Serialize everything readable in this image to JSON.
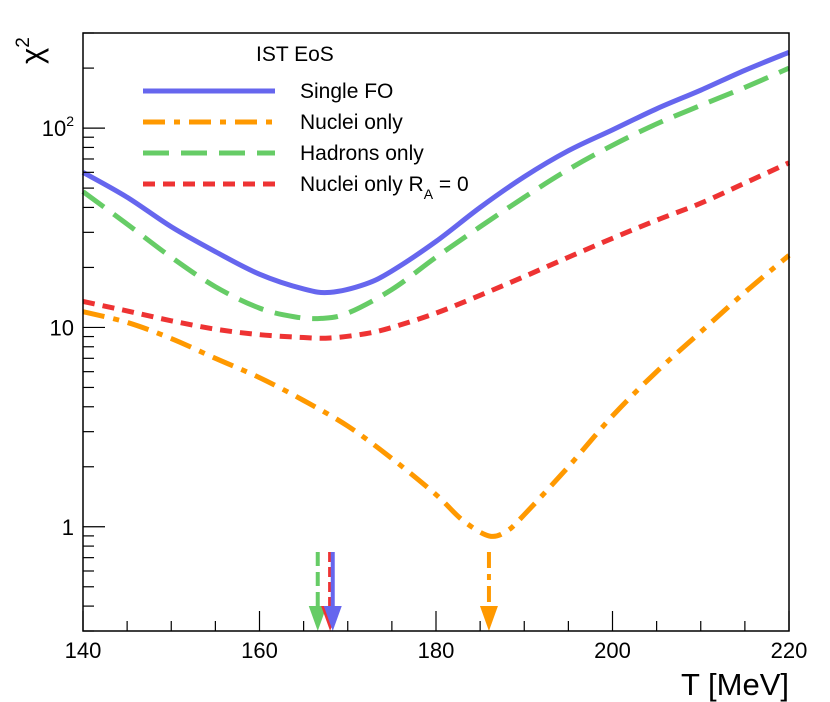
{
  "chart_data": {
    "type": "line",
    "title": "",
    "xlabel": "T [MeV]",
    "ylabel_base": "χ",
    "ylabel_sup": "2",
    "xlim": [
      140,
      220
    ],
    "ylim": [
      0.3,
      300
    ],
    "yscale": "log",
    "grid": false,
    "legend_position": "top-left",
    "legend_title": "IST EoS",
    "x_ticks": [
      {
        "value": 140,
        "label": "140"
      },
      {
        "value": 160,
        "label": "160"
      },
      {
        "value": 180,
        "label": "180"
      },
      {
        "value": 200,
        "label": "200"
      },
      {
        "value": 220,
        "label": "220"
      }
    ],
    "y_ticks": [
      {
        "value": 1,
        "label": "1"
      },
      {
        "value": 10,
        "label": "10"
      },
      {
        "value": 100,
        "label": "10",
        "sup": "2"
      }
    ],
    "series": [
      {
        "name": "Single FO",
        "legend_main": "Single FO",
        "legend_sub": "",
        "legend_tail": "",
        "color": "#6666ee",
        "style": "solid",
        "minimum_T": 168.2,
        "x": [
          140,
          145,
          150,
          155,
          160,
          165,
          168,
          172,
          175,
          180,
          185,
          190,
          195,
          200,
          205,
          210,
          215,
          220
        ],
        "y": [
          60,
          45,
          32,
          24,
          18.5,
          15.6,
          15.0,
          16.5,
          19.2,
          27,
          40,
          57,
          77,
          98,
          125,
          155,
          195,
          240
        ]
      },
      {
        "name": "Nuclei only",
        "legend_main": "Nuclei only",
        "legend_sub": "",
        "legend_tail": "",
        "color": "#ff9900",
        "style": "dashdot",
        "minimum_T": 186.0,
        "x": [
          140,
          145,
          150,
          155,
          160,
          165,
          170,
          175,
          180,
          183,
          186,
          188,
          190,
          195,
          200,
          205,
          210,
          215,
          220
        ],
        "y": [
          12,
          10.6,
          8.8,
          7.0,
          5.6,
          4.3,
          3.2,
          2.2,
          1.45,
          1.08,
          0.9,
          0.95,
          1.15,
          2.0,
          3.6,
          6.0,
          9.5,
          15,
          23
        ]
      },
      {
        "name": "Hadrons only",
        "legend_main": "Hadrons only",
        "legend_sub": "",
        "legend_tail": "",
        "color": "#66cc66",
        "style": "longdash",
        "minimum_T": 166.6,
        "x": [
          140,
          145,
          150,
          155,
          160,
          164,
          167,
          170,
          175,
          180,
          185,
          190,
          195,
          200,
          205,
          210,
          215,
          220
        ],
        "y": [
          48,
          33,
          22.5,
          16,
          12.5,
          11.3,
          11.1,
          11.8,
          15.5,
          22.5,
          32,
          45,
          62,
          82,
          105,
          130,
          160,
          200
        ]
      },
      {
        "name": "Nuclei only R_A = 0",
        "legend_main": "Nuclei only R",
        "legend_sub": "A",
        "legend_tail": " = 0",
        "color": "#ee3333",
        "style": "shortdash",
        "minimum_T": 168.0,
        "x": [
          140,
          145,
          150,
          155,
          160,
          165,
          168,
          172,
          175,
          180,
          185,
          190,
          195,
          200,
          205,
          210,
          215,
          220
        ],
        "y": [
          13.5,
          12.1,
          10.8,
          9.8,
          9.2,
          8.9,
          8.85,
          9.3,
          10.0,
          11.8,
          14.5,
          18,
          22.5,
          28,
          34.5,
          42,
          53,
          67
        ]
      }
    ],
    "arrows": [
      {
        "series": "Hadrons only",
        "x": 166.6,
        "color": "#66cc66",
        "style": "longdash"
      },
      {
        "series": "Nuclei only R_A = 0",
        "x": 168.0,
        "color": "#ee3333",
        "style": "shortdash"
      },
      {
        "series": "Single FO",
        "x": 168.3,
        "color": "#6666ee",
        "style": "solid"
      },
      {
        "series": "Nuclei only",
        "x": 186.0,
        "color": "#ff9900",
        "style": "dashdot"
      }
    ]
  }
}
